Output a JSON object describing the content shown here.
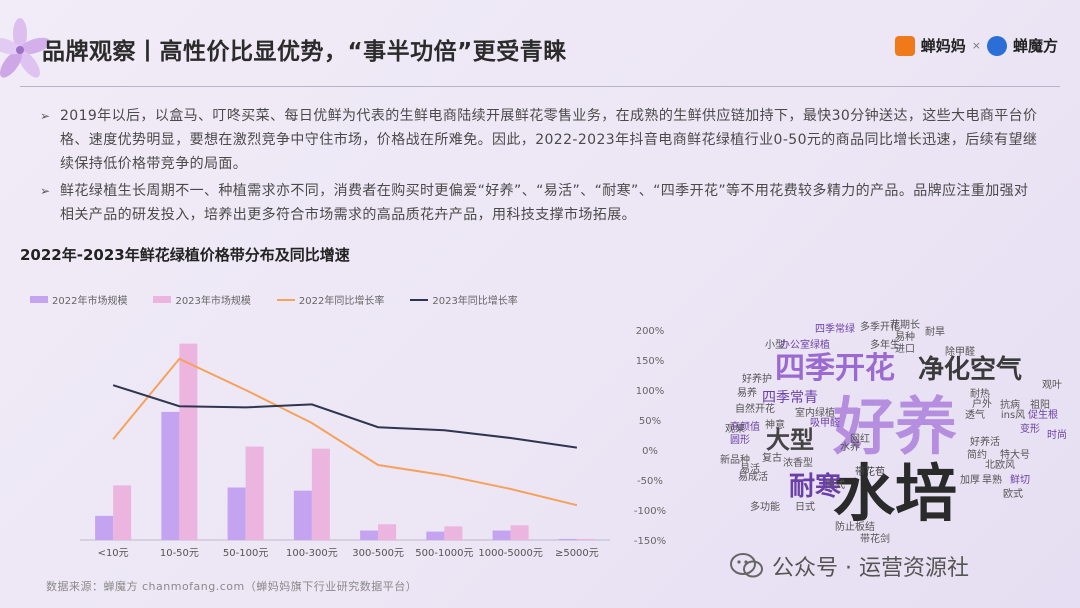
{
  "header": {
    "title": "品牌观察丨高性价比显优势，“事半功倍”更受青睐",
    "logo1": "蝉妈妈",
    "logo_sep": "×",
    "logo2": "蝉魔方",
    "logo1_color": "#f07a1a",
    "logo2_color": "#2b6fd6"
  },
  "bullets": [
    "2019年以后，以盒马、叮咚买菜、每日优鲜为代表的生鲜电商陆续开展鲜花零售业务，在成熟的生鲜供应链加持下，最快30分钟送达，这些大电商平台价格、速度优势明显，要想在激烈竞争中守住市场，价格战在所难免。因此，2022-2023年抖音电商鲜花绿植行业0-50元的商品同比增长迅速，后续有望继续保持低价格带竞争的局面。",
    "鲜花绿植生长周期不一、种植需求亦不同，消费者在购买时更偏爱“好养”、“易活”、“耐寒”、“四季开花”等不用花费较多精力的产品。品牌应注重加强对相关产品的研发投入，培养出更多符合市场需求的高品质花卉产品，用科技支撑市场拓展。"
  ],
  "bullet_marker": "➢",
  "chart_data": {
    "type": "bar",
    "title": "2022年-2023年鲜花绿植价格带分布及同比增速",
    "categories": [
      "<10元",
      "10-50元",
      "50-100元",
      "100-300元",
      "300-500元",
      "500-1000元",
      "1000-5000元",
      "≥5000元"
    ],
    "series": [
      {
        "name": "2022年市场规模",
        "kind": "bar",
        "axis": "left",
        "color": "#c4a3f0",
        "values": [
          2.3,
          12.2,
          5.0,
          4.7,
          0.9,
          0.8,
          0.9,
          0.1
        ]
      },
      {
        "name": "2023年市场规模",
        "kind": "bar",
        "axis": "left",
        "color": "#ebb5df",
        "values": [
          5.2,
          18.7,
          8.9,
          8.7,
          1.5,
          1.3,
          1.4,
          0.1
        ]
      },
      {
        "name": "2022年同比增长率",
        "kind": "line",
        "axis": "right",
        "color": "#f5a25d",
        "values": [
          18,
          152,
          100,
          45,
          -25,
          -42,
          -65,
          -92
        ]
      },
      {
        "name": "2023年同比增长率",
        "kind": "line",
        "axis": "right",
        "color": "#2f3550",
        "values": [
          108,
          73,
          71,
          76,
          38,
          33,
          20,
          4
        ]
      }
    ],
    "y_left_range": [
      0,
      20
    ],
    "y_right_range": [
      -150,
      200
    ],
    "y_right_ticks": [
      "200%",
      "150%",
      "100%",
      "50%",
      "0%",
      "-50%",
      "-100%",
      "-150%"
    ],
    "y_right_tick_values": [
      200,
      150,
      100,
      50,
      0,
      -50,
      -100,
      -150
    ],
    "grid": false,
    "legend_position": "top-left"
  },
  "word_cloud": {
    "words": [
      {
        "text": "好养",
        "weight": 10,
        "color": "#b58ee0"
      },
      {
        "text": "水培",
        "weight": 10,
        "color": "#2a2a2a"
      },
      {
        "text": "四季开花",
        "weight": 7,
        "color": "#9a6ad0"
      },
      {
        "text": "净化空气",
        "weight": 6,
        "color": "#3a3a3a"
      },
      {
        "text": "耐寒",
        "weight": 6,
        "color": "#6b3fa8"
      },
      {
        "text": "大型",
        "weight": 5,
        "color": "#444"
      },
      {
        "text": "四季常青",
        "weight": 4,
        "color": "#6b3fa8"
      },
      {
        "text": "好养护",
        "weight": 3,
        "color": "#555"
      },
      {
        "text": "易养",
        "weight": 3,
        "color": "#555"
      },
      {
        "text": "自然开花",
        "weight": 3,
        "color": "#555"
      },
      {
        "text": "室内绿植",
        "weight": 3,
        "color": "#555"
      },
      {
        "text": "高颜值",
        "weight": 3,
        "color": "#6b3fa8"
      },
      {
        "text": "带花苞",
        "weight": 3,
        "color": "#444"
      },
      {
        "text": "多年生",
        "weight": 3,
        "color": "#555"
      },
      {
        "text": "除甲醛",
        "weight": 3,
        "color": "#555"
      },
      {
        "text": "多季开花",
        "weight": 3,
        "color": "#555"
      },
      {
        "text": "四季常绿",
        "weight": 3,
        "color": "#6b3fa8"
      },
      {
        "text": "办公室绿植",
        "weight": 3,
        "color": "#6b3fa8"
      },
      {
        "text": "易活",
        "weight": 3,
        "color": "#555"
      },
      {
        "text": "复古",
        "weight": 3,
        "color": "#555"
      },
      {
        "text": "浓香型",
        "weight": 3,
        "color": "#555"
      },
      {
        "text": "新品种",
        "weight": 3,
        "color": "#555"
      },
      {
        "text": "易成活",
        "weight": 3,
        "color": "#555"
      },
      {
        "text": "多功能",
        "weight": 3,
        "color": "#555"
      },
      {
        "text": "日式",
        "weight": 3,
        "color": "#555"
      },
      {
        "text": "防止板结",
        "weight": 3,
        "color": "#555"
      },
      {
        "text": "带花剑",
        "weight": 3,
        "color": "#555"
      },
      {
        "text": "中式",
        "weight": 3,
        "color": "#555"
      },
      {
        "text": "网红",
        "weight": 3,
        "color": "#555"
      },
      {
        "text": "水养",
        "weight": 3,
        "color": "#555"
      },
      {
        "text": "简约",
        "weight": 3,
        "color": "#555"
      },
      {
        "text": "北欧风",
        "weight": 3,
        "color": "#555"
      },
      {
        "text": "欧式",
        "weight": 3,
        "color": "#555"
      },
      {
        "text": "加厚",
        "weight": 3,
        "color": "#555"
      },
      {
        "text": "旱熟",
        "weight": 3,
        "color": "#555"
      },
      {
        "text": "鲜切",
        "weight": 3,
        "color": "#6b3fa8"
      },
      {
        "text": "特大号",
        "weight": 3,
        "color": "#555"
      },
      {
        "text": "好养活",
        "weight": 3,
        "color": "#555"
      },
      {
        "text": "耐热",
        "weight": 3,
        "color": "#555"
      },
      {
        "text": "透气",
        "weight": 3,
        "color": "#555"
      },
      {
        "text": "ins风",
        "weight": 3,
        "color": "#555"
      },
      {
        "text": "促生根",
        "weight": 3,
        "color": "#6b3fa8"
      },
      {
        "text": "户外",
        "weight": 3,
        "color": "#555"
      },
      {
        "text": "抗病",
        "weight": 3,
        "color": "#555"
      },
      {
        "text": "祖阳",
        "weight": 3,
        "color": "#555"
      },
      {
        "text": "观叶",
        "weight": 3,
        "color": "#555"
      },
      {
        "text": "花期长",
        "weight": 3,
        "color": "#555"
      },
      {
        "text": "易种",
        "weight": 3,
        "color": "#555"
      },
      {
        "text": "进口",
        "weight": 3,
        "color": "#555"
      },
      {
        "text": "小型",
        "weight": 3,
        "color": "#555"
      },
      {
        "text": "吸甲醛",
        "weight": 3,
        "color": "#6b3fa8"
      },
      {
        "text": "神意",
        "weight": 3,
        "color": "#555"
      },
      {
        "text": "观果",
        "weight": 3,
        "color": "#555"
      },
      {
        "text": "圆形",
        "weight": 3,
        "color": "#6b3fa8"
      },
      {
        "text": "变形",
        "weight": 3,
        "color": "#6b3fa8"
      },
      {
        "text": "时尚",
        "weight": 3,
        "color": "#6b3fa8"
      },
      {
        "text": "耐旱",
        "weight": 3,
        "color": "#555"
      }
    ]
  },
  "source": "数据来源：蝉魔方  chanmofang.com（蝉妈妈旗下行业研究数据平台）",
  "watermark": "公众号 · 运营资源社"
}
